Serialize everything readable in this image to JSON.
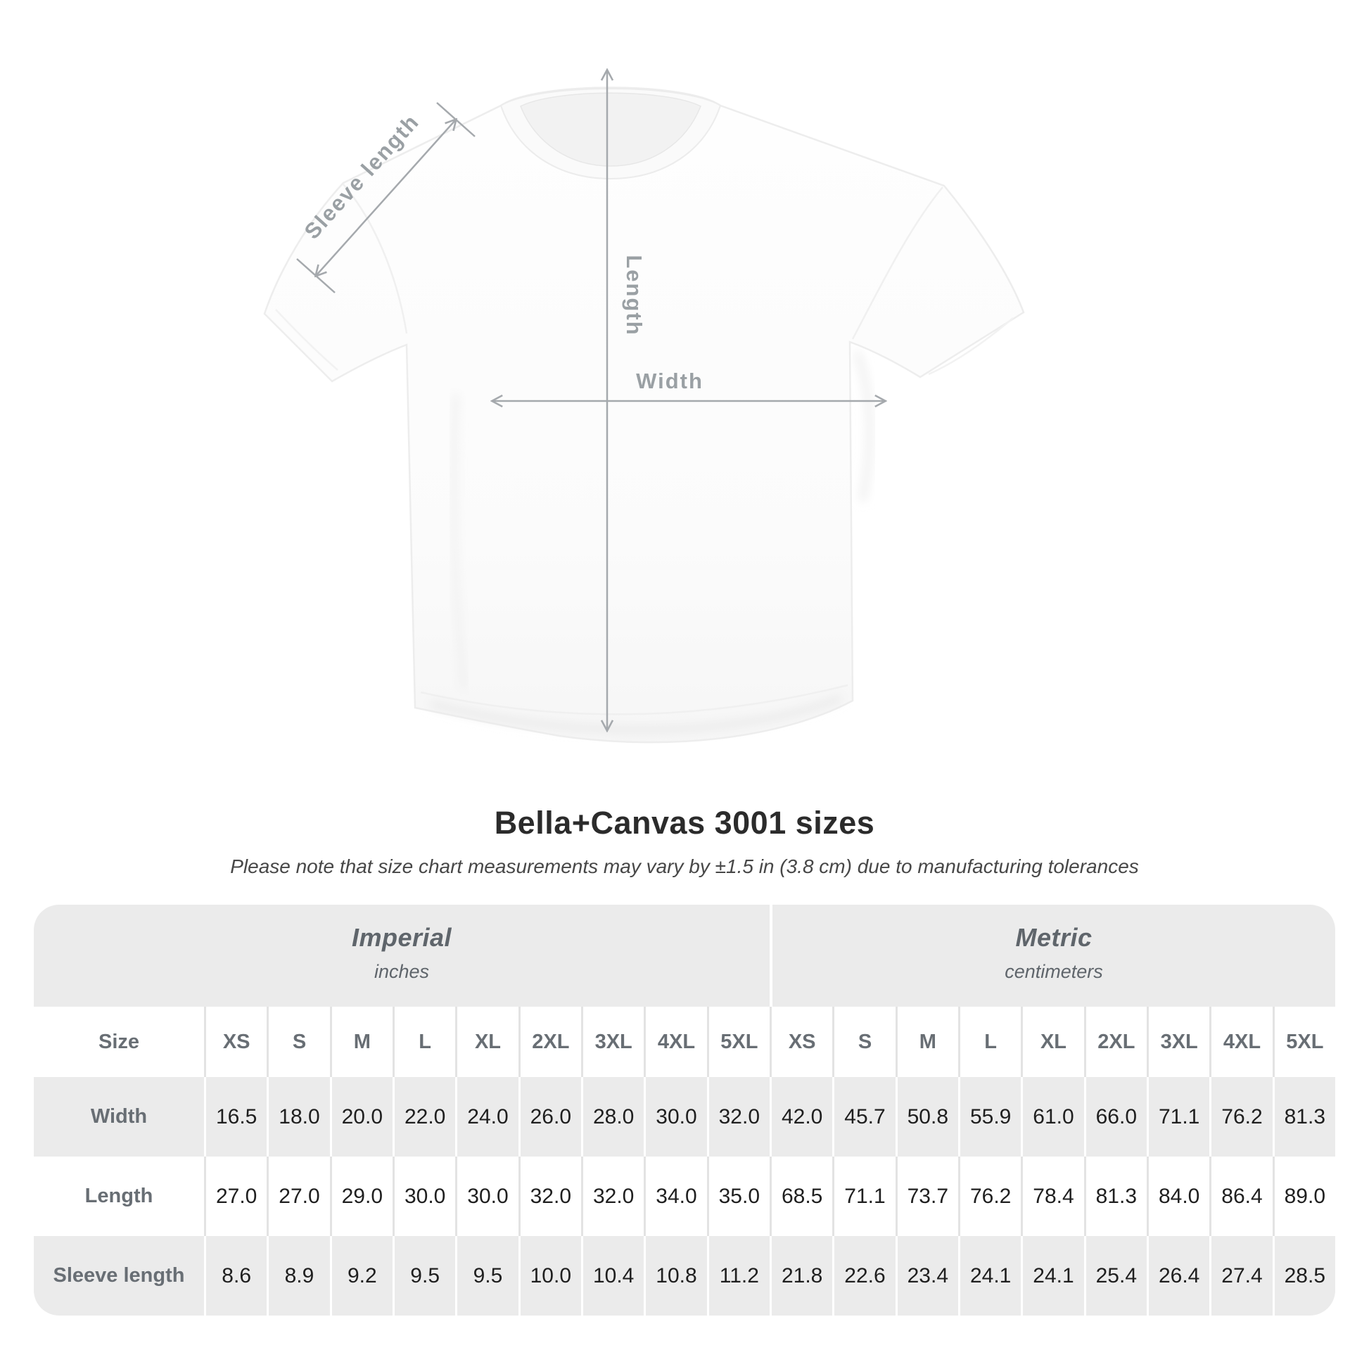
{
  "diagram": {
    "sleeve_length_label": "Sleeve length",
    "length_label": "Length",
    "width_label": "Width"
  },
  "title": "Bella+Canvas 3001 sizes",
  "subtitle": "Please note that size chart measurements may vary by ±1.5 in (3.8 cm) due to manufacturing tolerances",
  "table": {
    "size_header": "Size",
    "unit_groups": [
      {
        "label": "Imperial",
        "sublabel": "inches"
      },
      {
        "label": "Metric",
        "sublabel": "centimeters"
      }
    ],
    "sizes": [
      "XS",
      "S",
      "M",
      "L",
      "XL",
      "2XL",
      "3XL",
      "4XL",
      "5XL"
    ],
    "rows": [
      {
        "label": "Width",
        "imperial": [
          "16.5",
          "18.0",
          "20.0",
          "22.0",
          "24.0",
          "26.0",
          "28.0",
          "30.0",
          "32.0"
        ],
        "metric": [
          "42.0",
          "45.7",
          "50.8",
          "55.9",
          "61.0",
          "66.0",
          "71.1",
          "76.2",
          "81.3"
        ]
      },
      {
        "label": "Length",
        "imperial": [
          "27.0",
          "27.0",
          "29.0",
          "30.0",
          "30.0",
          "32.0",
          "32.0",
          "34.0",
          "35.0"
        ],
        "metric": [
          "68.5",
          "71.1",
          "73.7",
          "76.2",
          "78.4",
          "81.3",
          "84.0",
          "86.4",
          "89.0"
        ]
      },
      {
        "label": "Sleeve length",
        "imperial": [
          "8.6",
          "8.9",
          "9.2",
          "9.5",
          "9.5",
          "10.0",
          "10.4",
          "10.8",
          "11.2"
        ],
        "metric": [
          "21.8",
          "22.6",
          "23.4",
          "24.1",
          "24.1",
          "25.4",
          "26.4",
          "27.4",
          "28.5"
        ]
      }
    ]
  },
  "chart_data": {
    "type": "table",
    "title": "Bella+Canvas 3001 sizes",
    "unit_groups": [
      "Imperial (inches)",
      "Metric (centimeters)"
    ],
    "sizes": [
      "XS",
      "S",
      "M",
      "L",
      "XL",
      "2XL",
      "3XL",
      "4XL",
      "5XL"
    ],
    "rows": [
      {
        "measure": "Width",
        "imperial_in": [
          16.5,
          18.0,
          20.0,
          22.0,
          24.0,
          26.0,
          28.0,
          30.0,
          32.0
        ],
        "metric_cm": [
          42.0,
          45.7,
          50.8,
          55.9,
          61.0,
          66.0,
          71.1,
          76.2,
          81.3
        ]
      },
      {
        "measure": "Length",
        "imperial_in": [
          27.0,
          27.0,
          29.0,
          30.0,
          30.0,
          32.0,
          32.0,
          34.0,
          35.0
        ],
        "metric_cm": [
          68.5,
          71.1,
          73.7,
          76.2,
          78.4,
          81.3,
          84.0,
          86.4,
          89.0
        ]
      },
      {
        "measure": "Sleeve length",
        "imperial_in": [
          8.6,
          8.9,
          9.2,
          9.5,
          9.5,
          10.0,
          10.4,
          10.8,
          11.2
        ],
        "metric_cm": [
          21.8,
          22.6,
          23.4,
          24.1,
          24.1,
          25.4,
          26.4,
          27.4,
          28.5
        ]
      }
    ]
  },
  "colors": {
    "band_gray": "#ebebeb",
    "divider_on_gray": "#ffffff",
    "divider_on_white": "#e3e3e3",
    "title_text": "#2b2b2b",
    "subtitle_text": "#474747",
    "header_text": "#686e74",
    "value_text": "#1f1f1f",
    "annotation_text": "#9aa0a4",
    "annotation_line": "#a5a9ad"
  }
}
